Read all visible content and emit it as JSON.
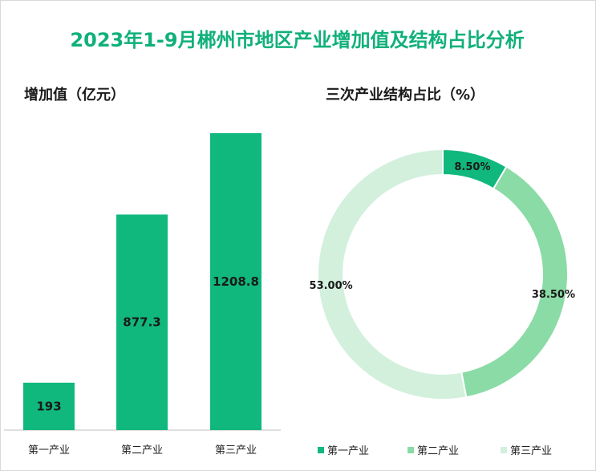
{
  "title": "2023年1-9月郴州市地区产业增加值及结构占比分析",
  "chart_data": [
    {
      "type": "bar",
      "title": "增加值（亿元）",
      "categories": [
        "第一产业",
        "第二产业",
        "第三产业"
      ],
      "values": [
        193,
        877.3,
        1208.8
      ],
      "value_labels": [
        "193",
        "877.3",
        "1208.8"
      ],
      "color": "#10b87d",
      "ylim": [
        0,
        1300
      ]
    },
    {
      "type": "pie",
      "title": "三次产业结构占比（%）",
      "donut": true,
      "labels": [
        "第一产业",
        "第二产业",
        "第三产业"
      ],
      "values": [
        8.5,
        38.5,
        53.0
      ],
      "value_labels": [
        "8.50%",
        "38.50%",
        "53.00%"
      ],
      "colors": [
        "#10b87d",
        "#8adba5",
        "#d2f0dc"
      ],
      "legend": "bottom"
    }
  ]
}
